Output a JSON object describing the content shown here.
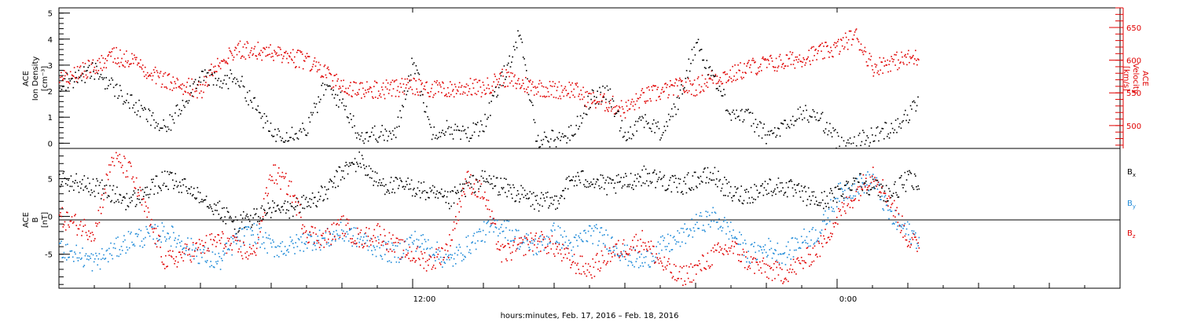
{
  "page": {
    "xlabel": "hours:minutes, Feb. 17, 2016 – Feb. 18, 2016"
  },
  "colors": {
    "black": "#000000",
    "red": "#e00000",
    "blue": "#1f8ad8"
  },
  "chart_data": [
    {
      "type": "scatter",
      "panel": "top",
      "ylabel_left": [
        "ACE",
        "Ion Density",
        "[cm⁻³]"
      ],
      "ylabel_right": [
        "ACE",
        "Velocity",
        "[km/s]"
      ],
      "ylim_left": [
        -0.2,
        5.2
      ],
      "ylim_right": [
        465,
        680
      ],
      "left_ticks": [
        "0",
        "1",
        "2",
        "3",
        "4",
        "5"
      ],
      "right_ticks": [
        "500",
        "550",
        "600",
        "650"
      ],
      "xlim_hours": [
        2.0,
        32.0
      ],
      "x_tick_labels": [
        {
          "hour": 12,
          "label": "12:00"
        },
        {
          "hour": 24,
          "label": "0:00"
        }
      ],
      "data_end_hour": 26.3,
      "series": [
        {
          "name": "Ion Density",
          "axis": "left",
          "color": "#000000",
          "hours": [
            2.0,
            3.0,
            4.0,
            5.0,
            6.0,
            6.5,
            7.0,
            7.5,
            8.0,
            8.5,
            9.0,
            9.5,
            10.0,
            10.5,
            11.0,
            11.5,
            12.0,
            12.5,
            13.0,
            13.5,
            14.0,
            14.5,
            15.0,
            15.5,
            16.0,
            16.5,
            17.0,
            17.5,
            18.0,
            18.5,
            19.0,
            19.5,
            20.0,
            20.5,
            21.0,
            21.5,
            22.0,
            22.5,
            23.0,
            23.5,
            24.0,
            24.5,
            25.0,
            25.5,
            26.0,
            26.3
          ],
          "values": [
            2.3,
            2.8,
            1.6,
            0.5,
            2.7,
            2.3,
            2.6,
            1.5,
            0.4,
            0.4,
            0.6,
            2.2,
            1.6,
            0.3,
            0.4,
            0.3,
            3.3,
            0.5,
            0.6,
            0.3,
            0.8,
            2.4,
            4.2,
            0.2,
            0.2,
            0.4,
            1.7,
            2.0,
            0.3,
            1.0,
            0.4,
            1.6,
            3.9,
            2.5,
            1.2,
            1.0,
            0.3,
            0.6,
            1.2,
            1.0,
            0.1,
            0.1,
            0.3,
            0.6,
            1.1,
            1.7
          ]
        },
        {
          "name": "Velocity",
          "axis": "right",
          "color": "#e00000",
          "hours": [
            2.0,
            3.0,
            3.5,
            4.0,
            5.0,
            6.0,
            6.5,
            7.0,
            7.5,
            8.0,
            8.5,
            9.0,
            9.5,
            10.0,
            10.5,
            11.0,
            11.5,
            12.0,
            12.5,
            13.0,
            13.5,
            14.0,
            14.5,
            15.0,
            15.5,
            16.0,
            16.5,
            17.0,
            17.5,
            18.0,
            18.5,
            19.0,
            19.5,
            20.0,
            20.5,
            21.0,
            21.5,
            22.0,
            22.5,
            23.0,
            23.5,
            24.0,
            24.5,
            25.0,
            25.5,
            26.0,
            26.3
          ],
          "values": [
            570,
            592,
            608,
            600,
            570,
            555,
            600,
            617,
            615,
            612,
            605,
            600,
            580,
            560,
            555,
            555,
            558,
            560,
            557,
            555,
            560,
            557,
            575,
            565,
            560,
            555,
            557,
            540,
            535,
            525,
            545,
            552,
            560,
            560,
            575,
            578,
            590,
            595,
            598,
            605,
            612,
            620,
            640,
            590,
            598,
            603,
            605
          ]
        }
      ]
    },
    {
      "type": "scatter",
      "panel": "bottom",
      "ylabel_left": [
        "ACE",
        "B",
        "[nT]"
      ],
      "ylim": [
        -9.5,
        9.0
      ],
      "left_ticks": [
        "-5",
        "0",
        "5"
      ],
      "xlim_hours": [
        2.0,
        32.0
      ],
      "zero_line": true,
      "data_end_hour": 26.3,
      "series": [
        {
          "name": "Bₓ",
          "color": "#000000",
          "hours": [
            2.0,
            3.0,
            4.0,
            5.0,
            6.0,
            6.5,
            7.0,
            7.5,
            8.0,
            8.5,
            9.0,
            9.5,
            10.0,
            10.5,
            11.0,
            11.5,
            12.0,
            12.5,
            13.0,
            13.5,
            14.0,
            14.5,
            15.0,
            15.5,
            16.0,
            16.5,
            17.0,
            17.5,
            18.0,
            18.5,
            19.0,
            19.5,
            20.0,
            20.5,
            21.0,
            21.5,
            22.0,
            22.5,
            23.0,
            23.5,
            24.0,
            24.5,
            25.0,
            25.5,
            26.0,
            26.3
          ],
          "values": [
            5.0,
            4.0,
            2.0,
            5.0,
            3.0,
            1.0,
            -1.0,
            0.0,
            1.0,
            1.0,
            2.0,
            3.0,
            6.0,
            7.5,
            4.5,
            4.0,
            4.0,
            3.0,
            2.0,
            4.0,
            5.0,
            4.0,
            3.0,
            2.0,
            2.0,
            5.0,
            5.0,
            4.0,
            4.5,
            5.5,
            5.0,
            4.0,
            5.0,
            5.5,
            3.0,
            3.0,
            4.0,
            4.0,
            3.0,
            2.0,
            3.0,
            5.0,
            4.0,
            3.0,
            5.0,
            4.0
          ]
        },
        {
          "name": "Bᵧ",
          "color": "#1f8ad8",
          "hours": [
            2.0,
            3.0,
            4.0,
            5.0,
            6.0,
            6.5,
            7.0,
            7.5,
            8.0,
            8.5,
            9.0,
            9.5,
            10.0,
            10.5,
            11.0,
            11.5,
            12.0,
            12.5,
            13.0,
            13.5,
            14.0,
            14.5,
            15.0,
            15.5,
            16.0,
            16.5,
            17.0,
            17.5,
            18.0,
            18.5,
            19.0,
            19.5,
            20.0,
            20.5,
            21.0,
            21.5,
            22.0,
            22.5,
            23.0,
            23.5,
            24.0,
            24.5,
            25.0,
            25.5,
            26.0,
            26.3
          ],
          "values": [
            -4.0,
            -6.0,
            -3.0,
            -2.0,
            -5.0,
            -6.0,
            -3.0,
            -2.0,
            -4.0,
            -4.0,
            -3.0,
            -3.0,
            -2.0,
            -3.0,
            -4.0,
            -5.0,
            -3.0,
            -4.0,
            -6.0,
            -4.0,
            -2.0,
            -1.0,
            -3.0,
            -4.0,
            -2.0,
            -4.0,
            -2.0,
            -3.0,
            -5.0,
            -6.0,
            -4.0,
            -3.0,
            -1.0,
            0.0,
            -2.0,
            -5.0,
            -4.0,
            -5.0,
            -3.0,
            -2.0,
            3.0,
            4.0,
            5.0,
            0.0,
            -2.0,
            -3.0
          ]
        },
        {
          "name": "B_z",
          "color": "#e00000",
          "hours": [
            2.0,
            3.0,
            3.5,
            4.0,
            5.0,
            6.0,
            6.5,
            7.0,
            7.5,
            8.0,
            8.5,
            9.0,
            9.5,
            10.0,
            10.5,
            11.0,
            11.5,
            12.0,
            12.5,
            13.0,
            13.5,
            14.0,
            14.5,
            15.0,
            15.5,
            16.0,
            16.5,
            17.0,
            17.5,
            18.0,
            18.5,
            19.0,
            19.5,
            20.0,
            20.5,
            21.0,
            21.5,
            22.0,
            22.5,
            23.0,
            23.5,
            24.0,
            24.5,
            25.0,
            25.5,
            26.0,
            26.3
          ],
          "values": [
            0.0,
            -2.0,
            8.0,
            6.0,
            -6.0,
            -4.0,
            -3.0,
            -4.0,
            -5.0,
            6.0,
            4.0,
            -2.0,
            -3.0,
            -1.0,
            -3.0,
            -2.0,
            -4.0,
            -5.0,
            -6.0,
            -4.0,
            5.0,
            3.0,
            -5.0,
            -4.0,
            -3.0,
            -4.0,
            -6.0,
            -7.0,
            -5.0,
            -4.0,
            -3.0,
            -6.0,
            -8.0,
            -7.0,
            -5.0,
            -4.0,
            -6.0,
            -7.0,
            -7.5,
            -6.0,
            -4.0,
            0.0,
            3.0,
            6.0,
            2.0,
            -3.0,
            -4.0
          ]
        }
      ],
      "legend": [
        {
          "label": "B",
          "sub": "x",
          "color": "#000000"
        },
        {
          "label": "B",
          "sub": "y",
          "color": "#1f8ad8"
        },
        {
          "label": "B",
          "sub": "z",
          "color": "#e00000"
        }
      ]
    }
  ]
}
